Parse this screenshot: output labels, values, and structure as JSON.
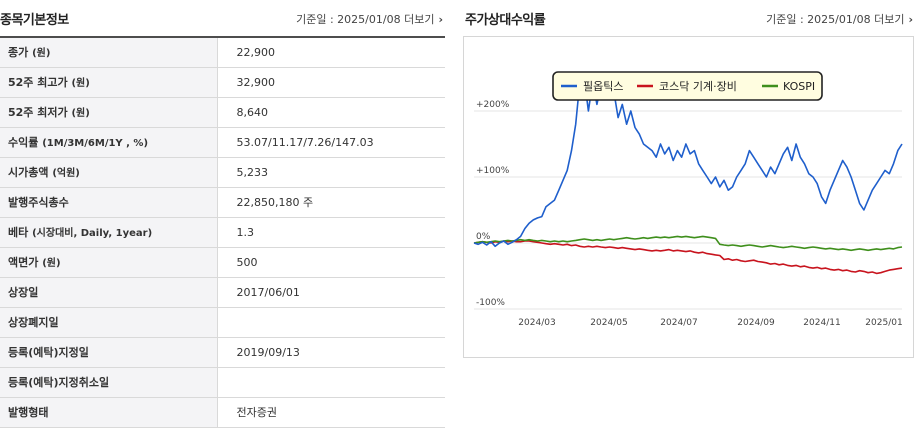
{
  "left": {
    "title": "종목기본정보",
    "meta": {
      "date_label": "기준일 : 2025/01/08",
      "more_label": "더보기"
    },
    "rows": [
      {
        "label": "종가",
        "unit": "(원)",
        "value": "22,900"
      },
      {
        "label": "52주 최고가",
        "unit": "(원)",
        "value": "32,900"
      },
      {
        "label": "52주 최저가",
        "unit": "(원)",
        "value": "8,640"
      },
      {
        "label": "수익률",
        "unit": "(1M/3M/6M/1Y , %)",
        "value": "53.07/11.17/7.26/147.03"
      },
      {
        "label": "시가총액",
        "unit": "(억원)",
        "value": "5,233"
      },
      {
        "label": "발행주식총수",
        "unit": "",
        "value": "22,850,180 주"
      },
      {
        "label": "베타",
        "unit": "(시장대비, Daily, 1year)",
        "value": "1.3"
      },
      {
        "label": "액면가",
        "unit": "(원)",
        "value": "500"
      },
      {
        "label": "상장일",
        "unit": "",
        "value": "2017/06/01"
      },
      {
        "label": "상장폐지일",
        "unit": "",
        "value": ""
      },
      {
        "label": "등록(예탁)지정일",
        "unit": "",
        "value": "2019/09/13"
      },
      {
        "label": "등록(예탁)지정취소일",
        "unit": "",
        "value": ""
      },
      {
        "label": "발행형태",
        "unit": "",
        "value": "전자증권"
      }
    ]
  },
  "right": {
    "title": "주가상대수익률",
    "meta": {
      "date_label": "기준일 : 2025/01/08",
      "more_label": "더보기"
    }
  },
  "chart_data": {
    "type": "line",
    "x_ticks": [
      "2024/03",
      "2024/05",
      "2024/07",
      "2024/09",
      "2024/11",
      "2025/01"
    ],
    "y_ticks": [
      "+200%",
      "+100%",
      "0%",
      "-100%"
    ],
    "ylim": [
      -100,
      200
    ],
    "legend_position": "top-center",
    "grid": true,
    "series": [
      {
        "name": "필옵틱스",
        "color": "#1f5fcc",
        "values": [
          0,
          -2,
          1,
          -3,
          2,
          -5,
          0,
          3,
          -2,
          1,
          5,
          10,
          22,
          30,
          35,
          38,
          40,
          55,
          60,
          65,
          80,
          95,
          110,
          140,
          180,
          245,
          250,
          200,
          245,
          210,
          240,
          220,
          250,
          230,
          190,
          210,
          180,
          200,
          175,
          165,
          150,
          145,
          140,
          130,
          150,
          135,
          145,
          125,
          140,
          130,
          150,
          135,
          140,
          120,
          110,
          100,
          90,
          100,
          85,
          95,
          80,
          85,
          100,
          110,
          120,
          140,
          130,
          120,
          110,
          100,
          115,
          105,
          120,
          135,
          145,
          125,
          150,
          130,
          120,
          105,
          100,
          90,
          70,
          60,
          80,
          95,
          110,
          125,
          115,
          100,
          80,
          60,
          50,
          65,
          80,
          90,
          100,
          110,
          105,
          120,
          140,
          150
        ]
      },
      {
        "name": "코스닥 기계·장비",
        "color": "#c8141e",
        "values": [
          0,
          1,
          2,
          1,
          0,
          2,
          1,
          3,
          2,
          3,
          2,
          2,
          3,
          3,
          2,
          1,
          0,
          -1,
          -2,
          -1,
          -2,
          -3,
          -2,
          -4,
          -3,
          -5,
          -6,
          -5,
          -6,
          -5,
          -6,
          -7,
          -6,
          -7,
          -8,
          -7,
          -8,
          -9,
          -10,
          -9,
          -10,
          -11,
          -12,
          -11,
          -12,
          -11,
          -10,
          -12,
          -11,
          -12,
          -13,
          -12,
          -14,
          -15,
          -14,
          -16,
          -17,
          -18,
          -19,
          -25,
          -24,
          -26,
          -25,
          -27,
          -28,
          -27,
          -26,
          -28,
          -29,
          -30,
          -32,
          -31,
          -33,
          -32,
          -34,
          -35,
          -34,
          -36,
          -35,
          -37,
          -38,
          -37,
          -39,
          -38,
          -40,
          -41,
          -40,
          -42,
          -41,
          -43,
          -44,
          -42,
          -43,
          -45,
          -44,
          -46,
          -45,
          -43,
          -41,
          -40,
          -39,
          -38
        ]
      },
      {
        "name": "KOSPI",
        "color": "#3f8f1c",
        "values": [
          0,
          1,
          2,
          1,
          2,
          3,
          2,
          3,
          4,
          3,
          4,
          5,
          4,
          5,
          4,
          3,
          4,
          3,
          2,
          3,
          2,
          3,
          2,
          3,
          4,
          5,
          6,
          5,
          4,
          5,
          4,
          5,
          6,
          5,
          6,
          7,
          8,
          7,
          6,
          7,
          8,
          7,
          8,
          9,
          8,
          9,
          8,
          9,
          10,
          9,
          10,
          9,
          8,
          9,
          10,
          9,
          8,
          7,
          -2,
          -3,
          -4,
          -3,
          -4,
          -5,
          -4,
          -3,
          -4,
          -5,
          -6,
          -5,
          -4,
          -5,
          -6,
          -7,
          -6,
          -5,
          -6,
          -7,
          -8,
          -7,
          -6,
          -7,
          -8,
          -9,
          -8,
          -9,
          -10,
          -9,
          -10,
          -11,
          -10,
          -9,
          -10,
          -11,
          -10,
          -9,
          -10,
          -9,
          -8,
          -9,
          -7,
          -6
        ]
      }
    ]
  }
}
